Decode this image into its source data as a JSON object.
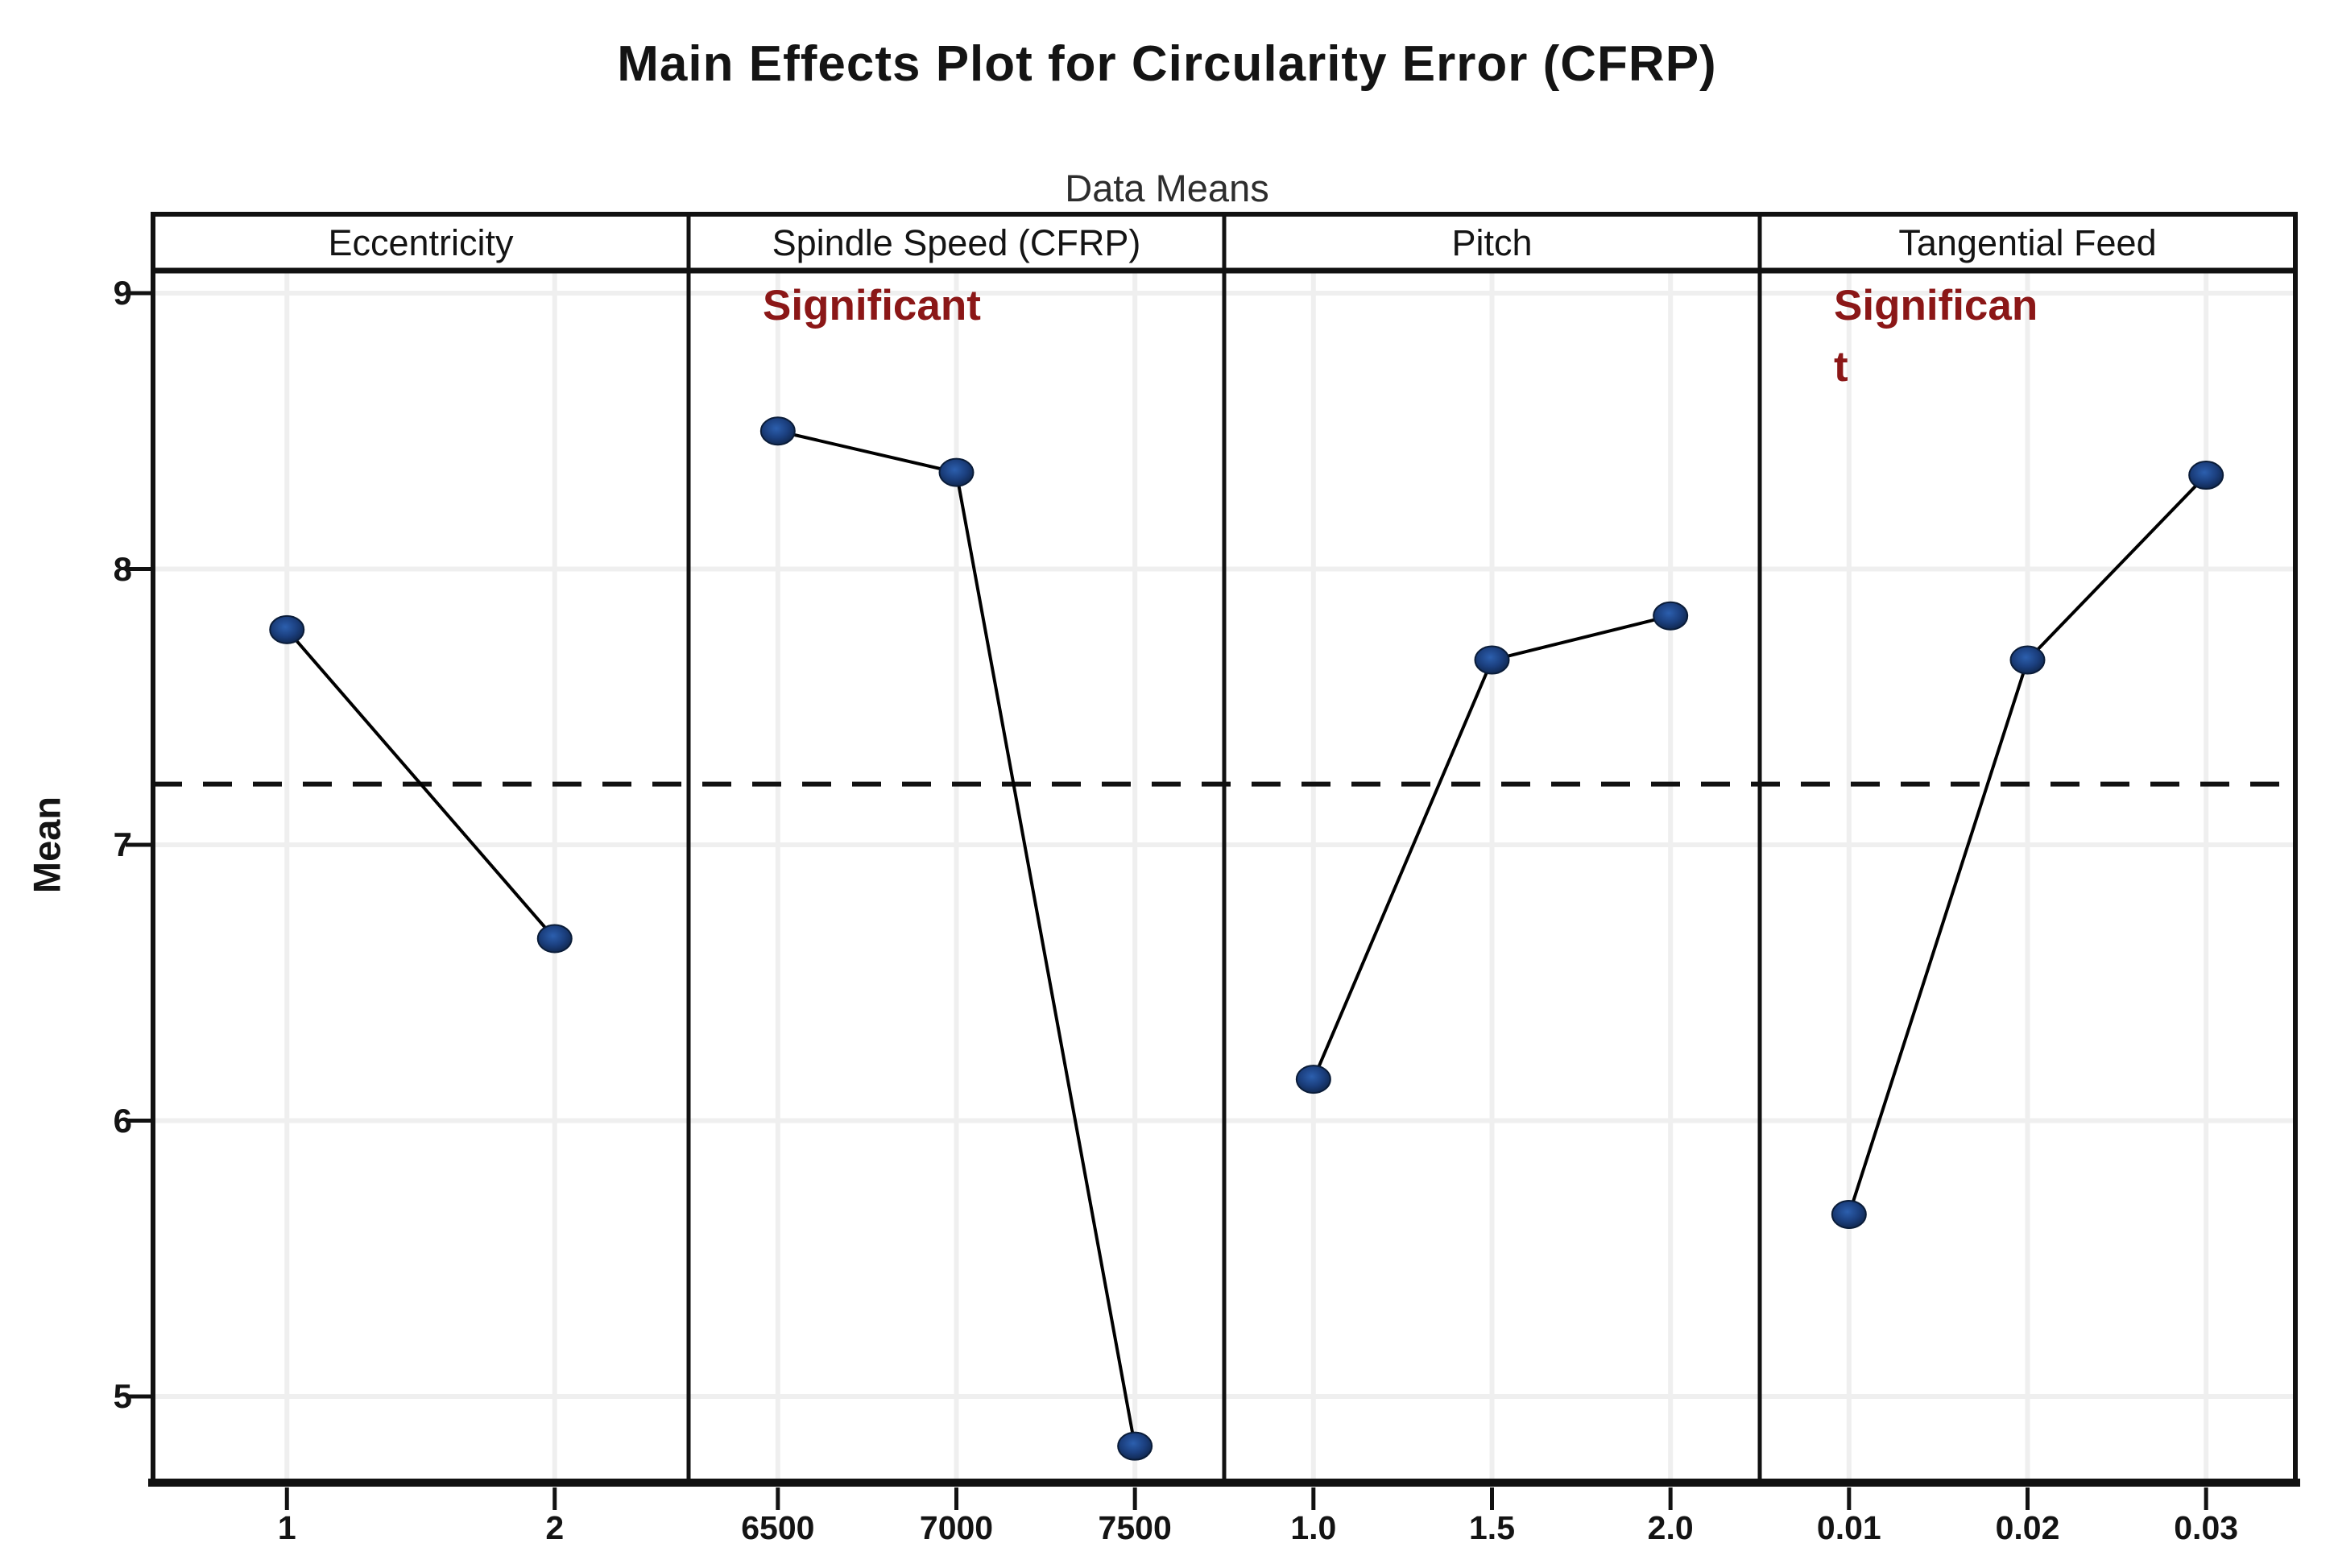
{
  "chart_data": {
    "type": "line",
    "title": "Main Effects Plot for Circularity Error (CFRP)",
    "subtitle": "Data Means",
    "ylabel": "Mean",
    "ylim": [
      4.69,
      9.08
    ],
    "yticks": [
      "9",
      "8",
      "7",
      "6",
      "5"
    ],
    "grid": true,
    "legend": "none",
    "grand_mean_line": 7.22,
    "grand_mean_line_style": "dashed",
    "panels": [
      {
        "factor": "Eccentricity",
        "levels": [
          "1",
          "2"
        ],
        "means": [
          7.78,
          6.66
        ],
        "annotation_lines": []
      },
      {
        "factor": "Spindle Speed (CFRP)",
        "levels": [
          "6500",
          "7000",
          "7500"
        ],
        "means": [
          8.5,
          8.35,
          4.82
        ],
        "annotation_lines": [
          "Significant"
        ]
      },
      {
        "factor": "Pitch",
        "levels": [
          "1.0",
          "1.5",
          "2.0"
        ],
        "means": [
          6.15,
          7.67,
          7.83
        ],
        "annotation_lines": []
      },
      {
        "factor": "Tangential Feed",
        "levels": [
          "0.01",
          "0.02",
          "0.03"
        ],
        "means": [
          5.66,
          7.67,
          8.34
        ],
        "annotation_lines": [
          "Significan",
          "t"
        ]
      }
    ],
    "colors": {
      "marker_center": "#2c5fae",
      "marker_mid": "#1b3f7e",
      "marker_edge": "#0f2448",
      "marker_stroke": "#0a1c38",
      "series_line": "#000000",
      "annotation_red": "#8b1717",
      "gridline": "#efefef",
      "frame": "#111111",
      "dashed_mean_line": "#111111"
    }
  }
}
